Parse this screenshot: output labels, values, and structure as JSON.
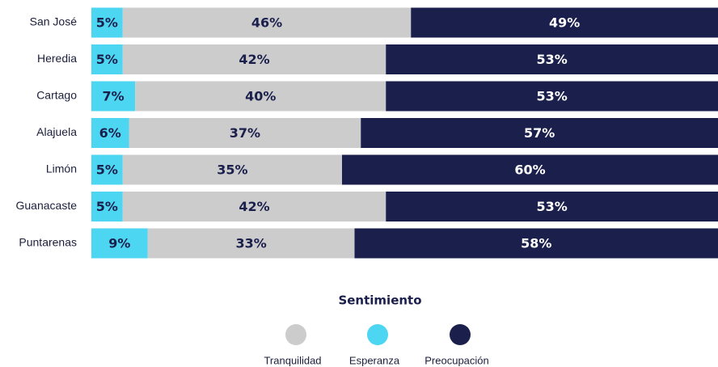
{
  "chart_data": {
    "type": "bar",
    "orientation": "horizontal",
    "stacked": true,
    "categories": [
      "San José",
      "Heredia",
      "Cartago",
      "Alajuela",
      "Limón",
      "Guanacaste",
      "Puntarenas"
    ],
    "xlim": [
      0,
      100
    ],
    "legend_title": "Sentimiento",
    "legend": "bottom",
    "series": [
      {
        "name": "Tranquilidad",
        "color": "#cccccc",
        "values": [
          46,
          42,
          40,
          37,
          35,
          42,
          33
        ],
        "value_labels": [
          "46%",
          "42%",
          "40%",
          "37%",
          "35%",
          "42%",
          "33%"
        ]
      },
      {
        "name": "Esperanza",
        "color": "#4dd6f2",
        "values": [
          5,
          5,
          7,
          6,
          5,
          5,
          9
        ],
        "value_labels": [
          "5%",
          "5%",
          "7%",
          "6%",
          "5%",
          "5%",
          "9%"
        ]
      },
      {
        "name": "Preocupación",
        "color": "#1a1f4c",
        "values": [
          49,
          53,
          53,
          57,
          60,
          53,
          58
        ],
        "value_labels": [
          "49%",
          "53%",
          "53%",
          "57%",
          "60%",
          "53%",
          "58%"
        ]
      }
    ]
  }
}
